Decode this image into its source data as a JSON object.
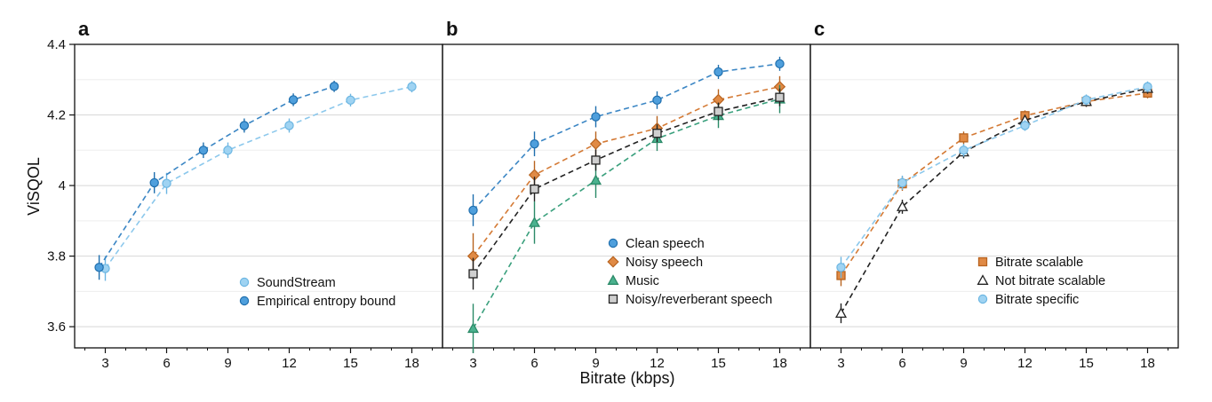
{
  "figure": {
    "ylabel": "ViSQOL",
    "xlabel": "Bitrate (kbps)",
    "colors": {
      "light_blue": "#9fd3f2",
      "mid_blue": "#4f9fdc",
      "orange": "#e08a45",
      "green": "#4bb28f",
      "gray": "#cfcfcf",
      "black": "#222222"
    }
  },
  "chart_data": [
    {
      "panel": "a",
      "type": "line",
      "xlabel": "",
      "ylabel": "ViSQOL",
      "xlim": [
        1.5,
        19.5
      ],
      "ylim": [
        3.54,
        4.4
      ],
      "xticks": [
        3,
        6,
        9,
        12,
        15,
        18
      ],
      "yticks": [
        3.6,
        3.8,
        4.0,
        4.2,
        4.4
      ],
      "ytick_labels": [
        "3.6",
        "3.8",
        "4",
        "4.2",
        "4.4"
      ],
      "grid": "horizontal",
      "legend_position": "lower-right",
      "series": [
        {
          "name": "SoundStream",
          "marker": "circle",
          "color": "#9fd3f2",
          "x": [
            3,
            6,
            9,
            12,
            15,
            18
          ],
          "y": [
            3.765,
            4.006,
            4.1,
            4.17,
            4.242,
            4.28
          ],
          "err": [
            0.035,
            0.03,
            0.022,
            0.02,
            0.018,
            0.016
          ]
        },
        {
          "name": "Empirical entropy bound",
          "marker": "circle",
          "color": "#4f9fdc",
          "x": [
            2.7,
            5.4,
            7.8,
            9.8,
            12.2,
            14.2
          ],
          "y": [
            3.768,
            4.008,
            4.1,
            4.17,
            4.243,
            4.281
          ],
          "err": [
            0.035,
            0.03,
            0.022,
            0.02,
            0.018,
            0.016
          ]
        }
      ]
    },
    {
      "panel": "b",
      "type": "line",
      "xlabel": "Bitrate (kbps)",
      "ylabel": "",
      "xlim": [
        1.5,
        19.5
      ],
      "ylim": [
        3.54,
        4.4
      ],
      "xticks": [
        3,
        6,
        9,
        12,
        15,
        18
      ],
      "grid": "horizontal",
      "legend_position": "lower-right",
      "series": [
        {
          "name": "Clean speech",
          "marker": "circle",
          "color": "#4f9fdc",
          "x": [
            3,
            6,
            9,
            12,
            15,
            18
          ],
          "y": [
            3.93,
            4.118,
            4.195,
            4.242,
            4.322,
            4.345
          ],
          "err": [
            0.045,
            0.035,
            0.03,
            0.025,
            0.02,
            0.02
          ]
        },
        {
          "name": "Noisy speech",
          "marker": "diamond",
          "color": "#e08a45",
          "x": [
            3,
            6,
            9,
            12,
            15,
            18
          ],
          "y": [
            3.8,
            4.03,
            4.118,
            4.162,
            4.243,
            4.28
          ],
          "err": [
            0.065,
            0.04,
            0.035,
            0.035,
            0.03,
            0.03
          ]
        },
        {
          "name": "Music",
          "marker": "triangle",
          "color": "#4bb28f",
          "x": [
            3,
            6,
            9,
            12,
            15,
            18
          ],
          "y": [
            3.595,
            3.895,
            4.015,
            4.133,
            4.198,
            4.245
          ],
          "err": [
            0.07,
            0.06,
            0.05,
            0.035,
            0.035,
            0.04
          ]
        },
        {
          "name": "Noisy/reverberant speech",
          "marker": "square",
          "color": "#cfcfcf",
          "x": [
            3,
            6,
            9,
            12,
            15,
            18
          ],
          "y": [
            3.75,
            3.99,
            4.072,
            4.148,
            4.21,
            4.25
          ],
          "err": [
            0.045,
            0.035,
            0.03,
            0.025,
            0.025,
            0.025
          ]
        }
      ]
    },
    {
      "panel": "c",
      "type": "line",
      "xlabel": "",
      "ylabel": "",
      "xlim": [
        1.5,
        19.5
      ],
      "ylim": [
        3.54,
        4.4
      ],
      "xticks": [
        3,
        6,
        9,
        12,
        15,
        18
      ],
      "grid": "horizontal",
      "legend_position": "lower-right",
      "series": [
        {
          "name": "Bitrate scalable",
          "marker": "square",
          "color": "#e08a45",
          "x": [
            3,
            6,
            9,
            12,
            15,
            18
          ],
          "y": [
            3.745,
            4.005,
            4.135,
            4.198,
            4.238,
            4.262
          ],
          "err": [
            0.03,
            0.02,
            0.018,
            0.015,
            0.015,
            0.015
          ]
        },
        {
          "name": "Not bitrate scalable",
          "marker": "triangle-open",
          "color": "#ffffff",
          "x": [
            3,
            6,
            9,
            12,
            15,
            18
          ],
          "y": [
            3.638,
            3.94,
            4.095,
            4.185,
            4.238,
            4.275
          ],
          "err": [
            0.028,
            0.02,
            0.018,
            0.015,
            0.015,
            0.015
          ]
        },
        {
          "name": "Bitrate specific",
          "marker": "circle",
          "color": "#9fd3f2",
          "x": [
            3,
            6,
            9,
            12,
            15,
            18
          ],
          "y": [
            3.768,
            4.008,
            4.1,
            4.17,
            4.243,
            4.28
          ],
          "err": [
            0.03,
            0.02,
            0.018,
            0.015,
            0.015,
            0.015
          ]
        }
      ]
    }
  ]
}
